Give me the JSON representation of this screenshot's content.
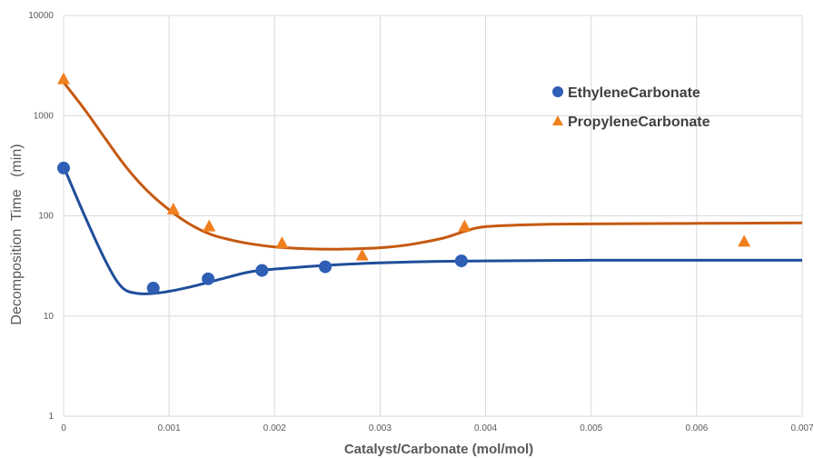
{
  "colors": {
    "ethylene": "#2e5fb5",
    "propylene": "#f07f1e",
    "propylene_curve": "#c65911",
    "ethylene_curve": "#1f4e9a",
    "grid": "#d9d9d9",
    "tick_text": "#595959"
  },
  "chart_data": {
    "type": "scatter",
    "title": "",
    "xlabel": "Catalyst/Carbonate (mol/mol)",
    "ylabel": "Decomposition  Time   (min)",
    "xlim": [
      0,
      0.007
    ],
    "ylim": [
      1,
      10000
    ],
    "yscale": "log",
    "grid": true,
    "legend_position": "right",
    "x_ticks": [
      "0",
      "0.001",
      "0.002",
      "0.003",
      "0.004",
      "0.005",
      "0.006",
      "0.007"
    ],
    "x_tick_values": [
      0,
      0.001,
      0.002,
      0.003,
      0.004,
      0.005,
      0.006,
      0.007
    ],
    "y_ticks": [
      "1",
      "10",
      "100",
      "1000",
      "10000"
    ],
    "y_tick_values": [
      1,
      10,
      100,
      1000,
      10000
    ],
    "series": [
      {
        "name": "EthyleneCarbonate",
        "marker": "circle",
        "x": [
          0,
          0.00085,
          0.00137,
          0.00188,
          0.00248,
          0.00377
        ],
        "y": [
          300,
          19,
          23.5,
          28.5,
          31,
          35.5
        ],
        "trend_x": [
          0,
          0.0002,
          0.0004,
          0.00055,
          0.0007,
          0.0009,
          0.0012,
          0.0015,
          0.0018,
          0.0022,
          0.0026,
          0.003,
          0.0035,
          0.004,
          0.005,
          0.006,
          0.007
        ],
        "trend_y": [
          310,
          100,
          35,
          19.5,
          16.8,
          17,
          19.5,
          23.5,
          28,
          30.5,
          32.5,
          34,
          35,
          35.5,
          36,
          36,
          36
        ]
      },
      {
        "name": "PropyleneCarbonate",
        "marker": "triangle",
        "x": [
          0,
          0.00104,
          0.00138,
          0.00207,
          0.00283,
          0.0038,
          0.00645
        ],
        "y": [
          2300,
          115,
          78,
          53,
          40,
          78,
          55
        ],
        "trend_x": [
          0,
          0.0002,
          0.0004,
          0.0006,
          0.0008,
          0.001,
          0.0012,
          0.0014,
          0.0016,
          0.0018,
          0.002,
          0.0023,
          0.0026,
          0.003,
          0.0033,
          0.0036,
          0.0038,
          0.004,
          0.0045,
          0.005,
          0.006,
          0.007
        ],
        "trend_y": [
          2150,
          1150,
          580,
          300,
          175,
          115,
          82,
          65,
          57,
          52,
          49,
          47,
          46.5,
          48,
          52,
          60,
          70,
          78,
          82,
          83,
          84,
          85
        ]
      }
    ]
  }
}
